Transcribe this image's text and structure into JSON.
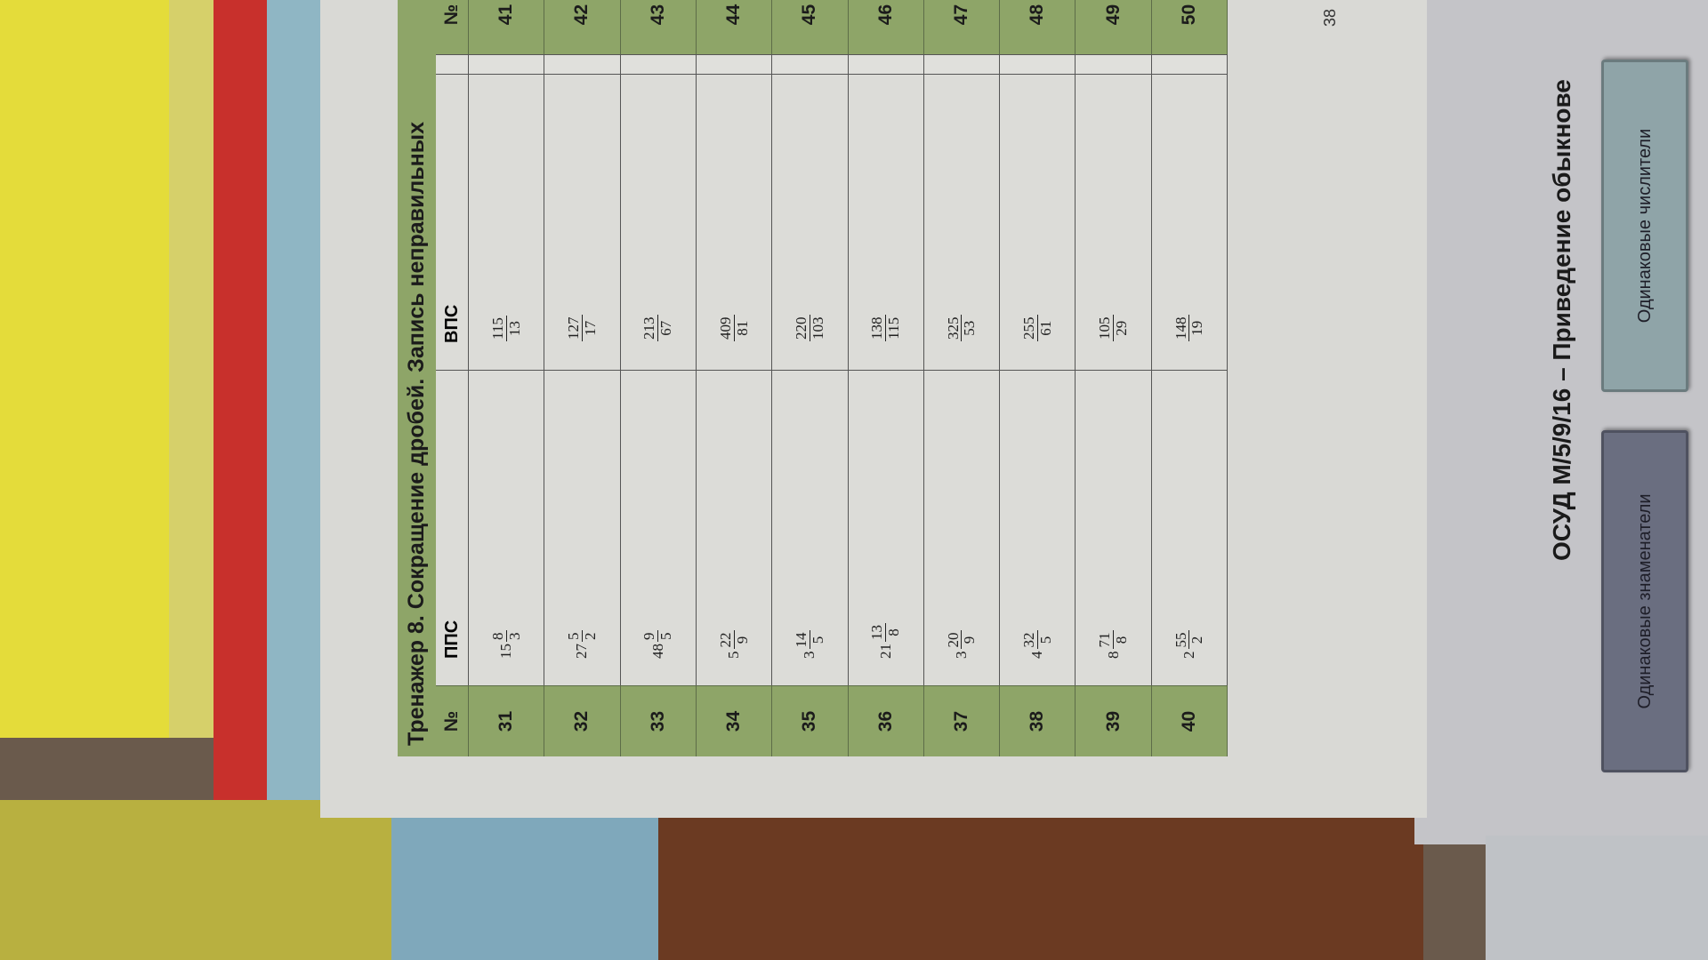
{
  "worksheet": {
    "title": "Тренажер 8. Сокращение дробей. Запись неправильных",
    "headers": {
      "number": "№",
      "mixed": "ППС",
      "improper": "ВПС"
    },
    "rows": [
      {
        "n": "31",
        "pps": {
          "whole": "15",
          "num": "8",
          "den": "3"
        },
        "vps": {
          "num": "115",
          "den": "13"
        }
      },
      {
        "n": "32",
        "pps": {
          "whole": "27",
          "num": "5",
          "den": "2"
        },
        "vps": {
          "num": "127",
          "den": "17"
        }
      },
      {
        "n": "33",
        "pps": {
          "whole": "48",
          "num": "9",
          "den": "5"
        },
        "vps": {
          "num": "213",
          "den": "67"
        }
      },
      {
        "n": "34",
        "pps": {
          "whole": "5",
          "num": "22",
          "den": "9"
        },
        "vps": {
          "num": "409",
          "den": "81"
        }
      },
      {
        "n": "35",
        "pps": {
          "whole": "3",
          "num": "14",
          "den": "5"
        },
        "vps": {
          "num": "220",
          "den": "103"
        }
      },
      {
        "n": "36",
        "pps": {
          "whole": "21",
          "num": "13",
          "den": "8"
        },
        "vps": {
          "num": "138",
          "den": "115"
        }
      },
      {
        "n": "37",
        "pps": {
          "whole": "3",
          "num": "20",
          "den": "9"
        },
        "vps": {
          "num": "325",
          "den": "53"
        }
      },
      {
        "n": "38",
        "pps": {
          "whole": "4",
          "num": "32",
          "den": "5"
        },
        "vps": {
          "num": "255",
          "den": "61"
        }
      },
      {
        "n": "39",
        "pps": {
          "whole": "8",
          "num": "71",
          "den": "8"
        },
        "vps": {
          "num": "105",
          "den": "29"
        }
      },
      {
        "n": "40",
        "pps": {
          "whole": "2",
          "num": "55",
          "den": "2"
        },
        "vps": {
          "num": "148",
          "den": "19"
        }
      }
    ],
    "second_numbers": [
      "41",
      "42",
      "43",
      "44",
      "45",
      "46",
      "47",
      "48",
      "49",
      "50"
    ],
    "page_number": "38"
  },
  "next_page": {
    "title": "ОСУД М/5/9/16 – Приведение обыкнове",
    "buttons": [
      "Одинаковые знаменатели",
      "Одинаковые числители"
    ]
  },
  "colors": {
    "header_green": "#8ea568",
    "button_dark": "#6a6e80",
    "button_light": "#8fa4a8"
  }
}
